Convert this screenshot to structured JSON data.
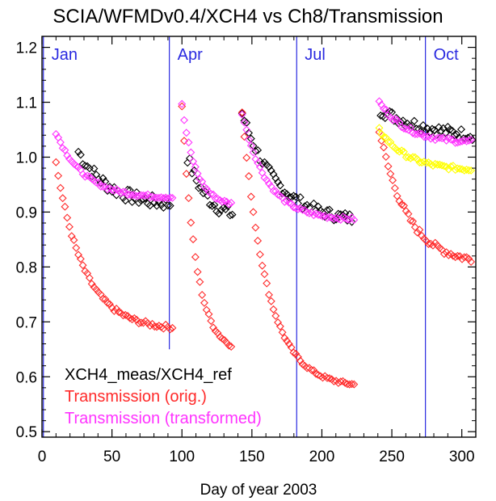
{
  "chart_data": {
    "type": "scatter",
    "title": "SCIA/WFMDv0.4/XCH4 vs Ch8/Transmission",
    "xlabel": "Day of year 2003",
    "ylabel": "",
    "xlim": [
      0,
      310
    ],
    "ylim": [
      0.49,
      1.22
    ],
    "x_ticks": [
      0,
      50,
      100,
      150,
      200,
      250,
      300
    ],
    "y_ticks": [
      0.5,
      0.6,
      0.7,
      0.8,
      0.9,
      1.0,
      1.1,
      1.2
    ],
    "y_tick_labels": [
      "0.5",
      "0.6",
      "0.7",
      "0.8",
      "0.9",
      "1.0",
      "1.1",
      "1.2"
    ],
    "grid": false,
    "legend_position": "bottom-left",
    "month_markers": [
      {
        "label": "Jan",
        "day": 1,
        "color": "#2a2ae0"
      },
      {
        "label": "Apr",
        "day": 91,
        "color": "#2a2ae0"
      },
      {
        "label": "Jul",
        "day": 182,
        "color": "#2a2ae0"
      },
      {
        "label": "Oct",
        "day": 274,
        "color": "#2a2ae0"
      }
    ],
    "series": [
      {
        "name": "XCH4_meas/XCH4_ref",
        "color": "#000000",
        "segments": [
          {
            "x0": 26,
            "x1": 92,
            "y0": 1.01,
            "y_end": 0.91,
            "decay": 22,
            "noise": 0.012
          },
          {
            "x0": 104,
            "x1": 136,
            "y0": 1.0,
            "y_end": 0.885,
            "decay": 14,
            "noise": 0.012
          },
          {
            "x0": 143,
            "x1": 222,
            "y0": 1.08,
            "y_end": 0.88,
            "decay": 25,
            "noise": 0.01
          },
          {
            "x0": 242,
            "x1": 308,
            "y0": 1.085,
            "y_end": 1.03,
            "decay": 40,
            "noise": 0.01
          }
        ]
      },
      {
        "name": "Transmission (orig.)",
        "color": "#ff2a2a",
        "segments": [
          {
            "x0": 10,
            "x1": 94,
            "y0": 0.99,
            "y_end": 0.685,
            "decay": 20,
            "noise": 0.004
          },
          {
            "x0": 100,
            "x1": 136,
            "y0": 1.095,
            "y_end": 0.645,
            "decay": 10,
            "noise": 0.004
          },
          {
            "x0": 143,
            "x1": 224,
            "y0": 1.08,
            "y_end": 0.58,
            "decay": 18,
            "noise": 0.003
          },
          {
            "x0": 241,
            "x1": 308,
            "y0": 1.05,
            "y_end": 0.805,
            "decay": 20,
            "noise": 0.006
          }
        ]
      },
      {
        "name": "Transmission (transformed)",
        "color": "#ff33ff",
        "segments": [
          {
            "x0": 10,
            "x1": 94,
            "y0": 1.045,
            "y_end": 0.925,
            "decay": 20,
            "noise": 0.003
          },
          {
            "x0": 100,
            "x1": 136,
            "y0": 1.095,
            "y_end": 0.91,
            "decay": 10,
            "noise": 0.003
          },
          {
            "x0": 143,
            "x1": 224,
            "y0": 1.08,
            "y_end": 0.885,
            "decay": 18,
            "noise": 0.003
          },
          {
            "x0": 241,
            "x1": 308,
            "y0": 1.1,
            "y_end": 1.025,
            "decay": 20,
            "noise": 0.004
          }
        ]
      },
      {
        "name": "",
        "color": "#ffff00",
        "segments": [
          {
            "x0": 241,
            "x1": 308,
            "y0": 1.05,
            "y_end": 0.975,
            "decay": 20,
            "noise": 0.004
          }
        ]
      }
    ]
  },
  "legend": [
    {
      "label": "XCH4_meas/XCH4_ref",
      "color": "#000000"
    },
    {
      "label": "Transmission (orig.)",
      "color": "#ff2a2a"
    },
    {
      "label": "Transmission (transformed)",
      "color": "#ff33ff"
    }
  ]
}
